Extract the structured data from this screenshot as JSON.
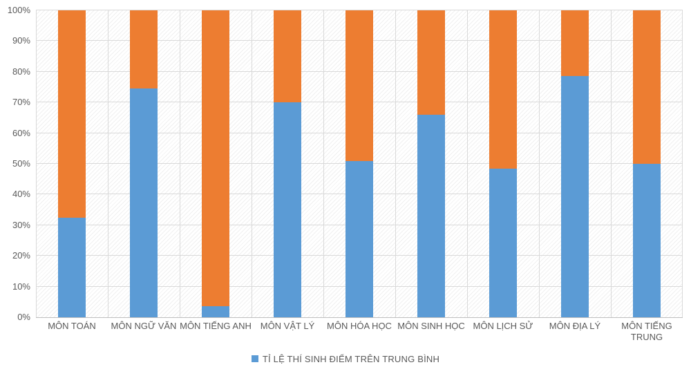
{
  "chart_data": {
    "type": "bar",
    "stacked": true,
    "percent_stacked": true,
    "categories": [
      "MÔN TOÁN",
      "MÔN NGỮ VĂN",
      "MÔN TIẾNG ANH",
      "MÔN VẬT LÝ",
      "MÔN HÓA HỌC",
      "MÔN SINH HỌC",
      "MÔN LỊCH SỬ",
      "MÔN ĐỊA LÝ",
      "MÔN TIẾNG TRUNG"
    ],
    "series": [
      {
        "name": "TỈ LỆ THÍ SINH ĐIỂM TRÊN TRUNG BÌNH",
        "color": "#5b9bd5",
        "values": [
          32.5,
          74.5,
          3.5,
          70,
          51,
          66,
          48.5,
          78.5,
          50
        ]
      },
      {
        "name": "",
        "color": "#ed7d31",
        "values": [
          67.5,
          25.5,
          96.5,
          30,
          49,
          34,
          51.5,
          21.5,
          50
        ]
      }
    ],
    "ylim": [
      0,
      100
    ],
    "yticks": [
      "0%",
      "10%",
      "20%",
      "30%",
      "40%",
      "50%",
      "60%",
      "70%",
      "80%",
      "90%",
      "100%"
    ],
    "grid": true,
    "legend_position": "bottom"
  },
  "legend": {
    "entries": [
      {
        "label": "TỈ LỆ THÍ SINH ĐIỂM TRÊN TRUNG BÌNH",
        "color": "#5b9bd5"
      }
    ]
  },
  "colors": {
    "gridline": "#d9d9d9",
    "axis_line": "#bdbdbd",
    "tick_text": "#595959",
    "series_blue": "#5b9bd5",
    "series_orange": "#ed7d31"
  }
}
